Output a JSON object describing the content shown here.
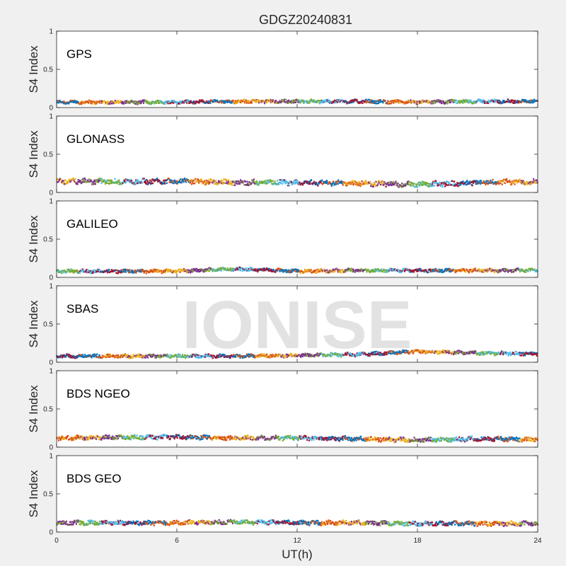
{
  "chart_data": {
    "type": "scatter",
    "title": "GDGZ20240831",
    "xlabel": "UT(h)",
    "xlim": [
      0,
      24
    ],
    "xticks": [
      0,
      6,
      12,
      18,
      24
    ],
    "xtick_labels": [
      "0",
      "6",
      "12",
      "18",
      "24"
    ],
    "watermark": "IONISE",
    "series_colors": [
      "#0072BD",
      "#D95319",
      "#EDB120",
      "#7E2F8E",
      "#77AC30",
      "#4DBEEE",
      "#A2142F"
    ],
    "panels": [
      {
        "label": "GPS",
        "ylabel": "S4 Index",
        "ylim": [
          0,
          1
        ],
        "yticks": [
          0,
          0.5,
          1
        ],
        "ytick_labels": [
          "0",
          "0.5",
          "1"
        ],
        "profile_x": [
          0,
          3,
          6,
          9,
          12,
          15,
          18,
          21,
          24
        ],
        "profile_y": [
          0.07,
          0.07,
          0.07,
          0.08,
          0.08,
          0.08,
          0.07,
          0.08,
          0.08
        ],
        "scatter": 0.02
      },
      {
        "label": "GLONASS",
        "ylabel": "S4 Index",
        "ylim": [
          0,
          1
        ],
        "yticks": [
          0,
          0.5,
          1
        ],
        "ytick_labels": [
          "0",
          "0.5",
          "1"
        ],
        "profile_x": [
          0,
          3,
          6,
          9,
          12,
          15,
          18,
          21,
          24
        ],
        "profile_y": [
          0.15,
          0.14,
          0.15,
          0.13,
          0.13,
          0.12,
          0.1,
          0.13,
          0.14
        ],
        "scatter": 0.03
      },
      {
        "label": "GALILEO",
        "ylabel": "S4 Index",
        "ylim": [
          0,
          1
        ],
        "yticks": [
          0,
          0.5,
          1
        ],
        "ytick_labels": [
          "0",
          "0.5",
          "1"
        ],
        "profile_x": [
          0,
          3,
          6,
          9,
          12,
          15,
          18,
          21,
          24
        ],
        "profile_y": [
          0.08,
          0.08,
          0.08,
          0.11,
          0.08,
          0.09,
          0.09,
          0.09,
          0.09
        ],
        "scatter": 0.02
      },
      {
        "label": "SBAS",
        "ylabel": "S4 Index",
        "ylim": [
          0,
          1
        ],
        "yticks": [
          0,
          0.5,
          1
        ],
        "ytick_labels": [
          "0",
          "0.5",
          "1"
        ],
        "profile_x": [
          0,
          3,
          6,
          9,
          12,
          15,
          18,
          21,
          24
        ],
        "profile_y": [
          0.08,
          0.08,
          0.08,
          0.08,
          0.09,
          0.1,
          0.14,
          0.12,
          0.11
        ],
        "scatter": 0.02
      },
      {
        "label": "BDS NGEO",
        "ylabel": "S4 Index",
        "ylim": [
          0,
          1
        ],
        "yticks": [
          0,
          0.5,
          1
        ],
        "ytick_labels": [
          "0",
          "0.5",
          "1"
        ],
        "profile_x": [
          0,
          3,
          6,
          9,
          12,
          15,
          18,
          21,
          24
        ],
        "profile_y": [
          0.12,
          0.13,
          0.13,
          0.12,
          0.12,
          0.11,
          0.09,
          0.11,
          0.1
        ],
        "scatter": 0.025
      },
      {
        "label": "BDS GEO",
        "ylabel": "S4 Index",
        "ylim": [
          0,
          1
        ],
        "yticks": [
          0,
          0.5,
          1
        ],
        "ytick_labels": [
          "0",
          "0.5",
          "1"
        ],
        "profile_x": [
          0,
          3,
          6,
          9,
          12,
          15,
          18,
          21,
          24
        ],
        "profile_y": [
          0.12,
          0.12,
          0.12,
          0.13,
          0.12,
          0.12,
          0.11,
          0.11,
          0.11
        ],
        "scatter": 0.025
      }
    ]
  }
}
